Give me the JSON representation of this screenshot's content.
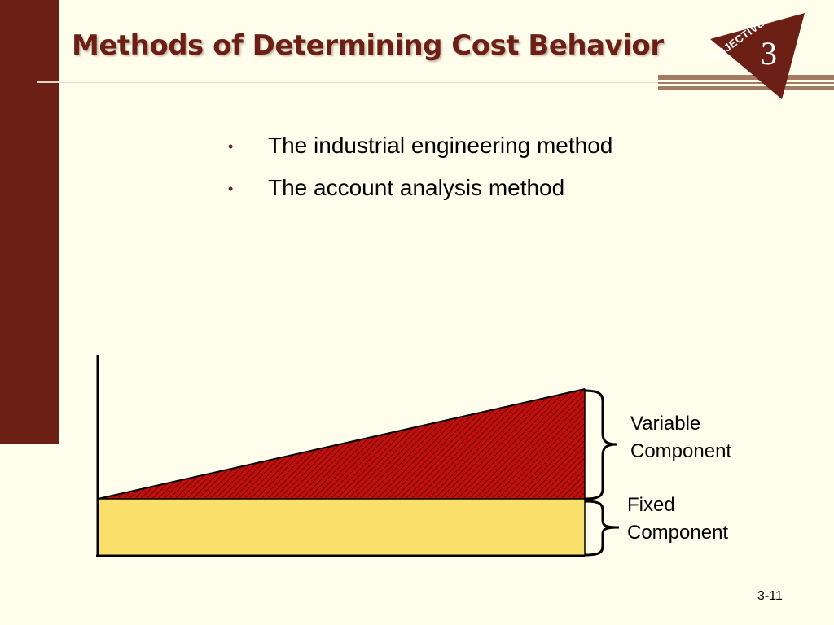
{
  "slide": {
    "title": "Methods of Determining Cost Behavior",
    "objective_label": "OBJECTIVE",
    "objective_number": "3",
    "page_number": "3-11"
  },
  "bullets": [
    {
      "text": "The industrial engineering method"
    },
    {
      "text": "The account analysis method"
    }
  ],
  "diagram": {
    "variable_label_line1": "Variable",
    "variable_label_line2": "Component",
    "fixed_label_line1": "Fixed",
    "fixed_label_line2": "Component",
    "colors": {
      "variable_fill": "#c0100e",
      "variable_hatch": "#6a0806",
      "fixed_fill": "#fadf6a",
      "axis": "#000000",
      "accent": "#6b1f15",
      "background": "#fffdeb"
    }
  }
}
